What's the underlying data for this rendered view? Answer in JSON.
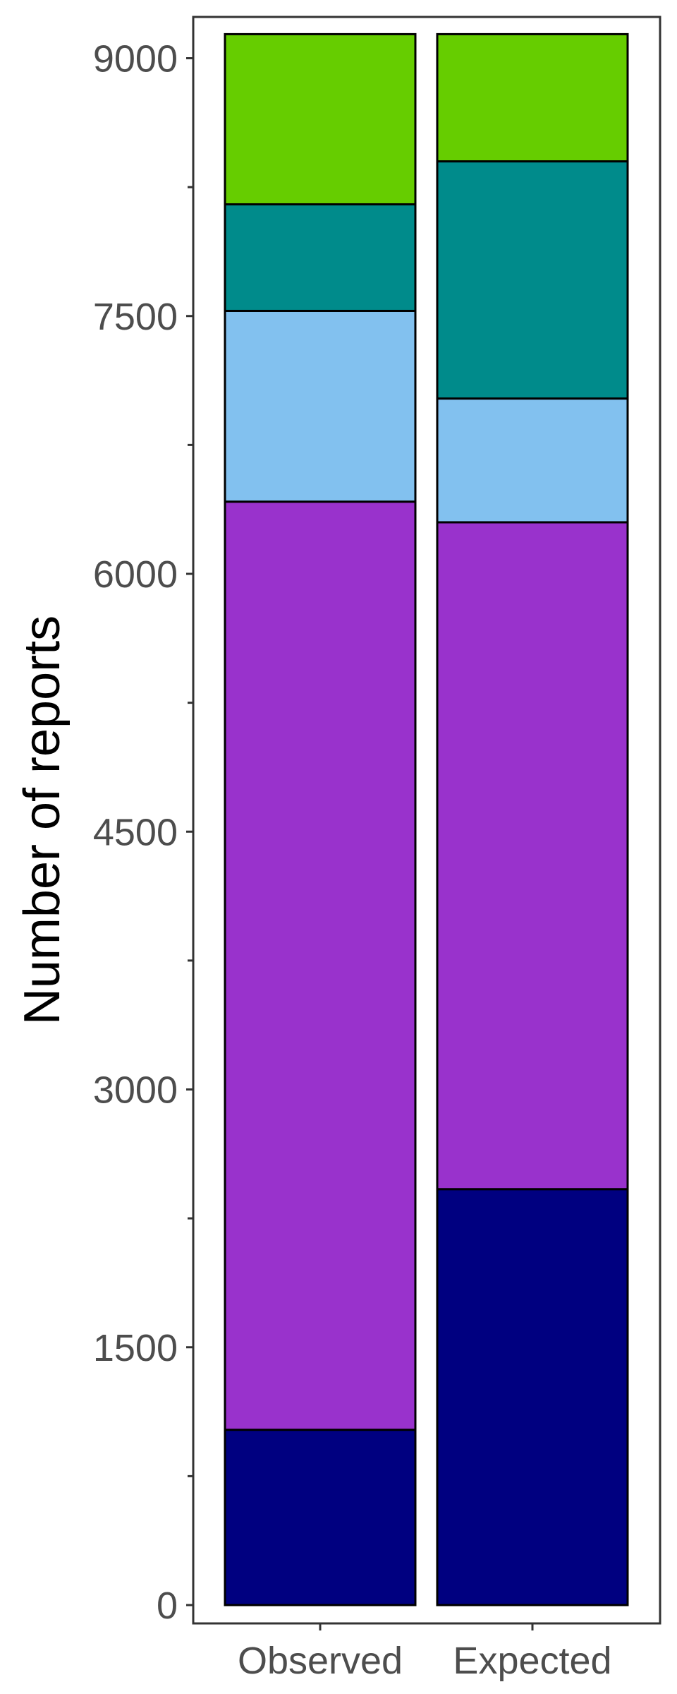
{
  "chart_data": {
    "type": "bar",
    "stacked": true,
    "title": "",
    "xlabel": "",
    "ylabel": "Number of reports",
    "ylim": [
      0,
      9300
    ],
    "yticks": [
      0,
      1500,
      3000,
      4500,
      6000,
      7500,
      9000
    ],
    "yticks_minor": [
      750,
      2250,
      3750,
      5250,
      6750,
      8250
    ],
    "grid": false,
    "legend": "none",
    "categories": [
      "Observed",
      "Expected"
    ],
    "series": [
      {
        "color": "#000080",
        "values": [
          1020,
          2420
        ]
      },
      {
        "color": "#9932CC",
        "values": [
          5400,
          3880
        ]
      },
      {
        "color": "#82C1EF",
        "values": [
          1110,
          720
        ]
      },
      {
        "color": "#008B8B",
        "values": [
          620,
          1380
        ]
      },
      {
        "color": "#66CD00",
        "values": [
          990,
          740
        ]
      }
    ]
  }
}
